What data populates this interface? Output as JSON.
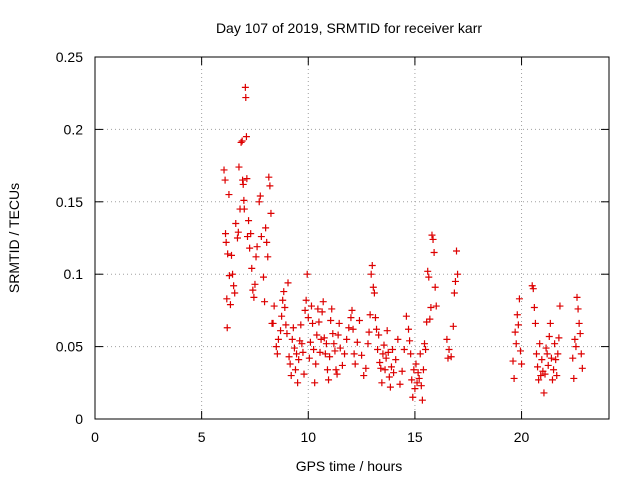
{
  "chart_data": {
    "type": "scatter",
    "title": "Day 107 of 2019, SRMTID for receiver karr",
    "xlabel": "GPS time / hours",
    "ylabel": "SRMTID / TECUs",
    "xlim": [
      0,
      24.1
    ],
    "ylim": [
      0,
      0.25
    ],
    "grid": true,
    "marker": "+",
    "color": "#dd0000",
    "x_ticks": [
      {
        "value": 0,
        "label": "0"
      },
      {
        "value": 5,
        "label": "5"
      },
      {
        "value": 10,
        "label": "10"
      },
      {
        "value": 15,
        "label": "15"
      },
      {
        "value": 20,
        "label": "20"
      }
    ],
    "y_ticks": [
      {
        "value": 0,
        "label": "0"
      },
      {
        "value": 0.05,
        "label": "0.05"
      },
      {
        "value": 0.1,
        "label": "0.1"
      },
      {
        "value": 0.15,
        "label": "0.15"
      },
      {
        "value": 0.2,
        "label": "0.2"
      },
      {
        "value": 0.25,
        "label": "0.25"
      }
    ],
    "series": [
      {
        "name": "SRMTID",
        "points": [
          [
            6.05,
            0.172
          ],
          [
            6.1,
            0.165
          ],
          [
            6.12,
            0.128
          ],
          [
            6.15,
            0.122
          ],
          [
            6.18,
            0.083
          ],
          [
            6.2,
            0.063
          ],
          [
            6.22,
            0.114
          ],
          [
            6.28,
            0.155
          ],
          [
            6.3,
            0.099
          ],
          [
            6.35,
            0.079
          ],
          [
            6.4,
            0.113
          ],
          [
            6.45,
            0.1
          ],
          [
            6.5,
            0.092
          ],
          [
            6.55,
            0.087
          ],
          [
            6.6,
            0.135
          ],
          [
            6.68,
            0.125
          ],
          [
            6.72,
            0.129
          ],
          [
            6.75,
            0.174
          ],
          [
            6.8,
            0.145
          ],
          [
            6.85,
            0.191
          ],
          [
            6.9,
            0.192
          ],
          [
            6.92,
            0.165
          ],
          [
            6.95,
            0.162
          ],
          [
            6.98,
            0.151
          ],
          [
            7.0,
            0.145
          ],
          [
            7.05,
            0.229
          ],
          [
            7.07,
            0.222
          ],
          [
            7.1,
            0.195
          ],
          [
            7.12,
            0.166
          ],
          [
            7.15,
            0.126
          ],
          [
            7.2,
            0.137
          ],
          [
            7.25,
            0.118
          ],
          [
            7.3,
            0.128
          ],
          [
            7.35,
            0.104
          ],
          [
            7.4,
            0.089
          ],
          [
            7.45,
            0.084
          ],
          [
            7.5,
            0.093
          ],
          [
            7.55,
            0.112
          ],
          [
            7.6,
            0.119
          ],
          [
            7.7,
            0.15
          ],
          [
            7.75,
            0.154
          ],
          [
            7.8,
            0.126
          ],
          [
            7.9,
            0.098
          ],
          [
            7.95,
            0.081
          ],
          [
            8.0,
            0.132
          ],
          [
            8.05,
            0.122
          ],
          [
            8.1,
            0.112
          ],
          [
            8.15,
            0.167
          ],
          [
            8.2,
            0.161
          ],
          [
            8.25,
            0.142
          ],
          [
            8.3,
            0.066
          ],
          [
            8.35,
            0.066
          ],
          [
            8.4,
            0.078
          ],
          [
            8.5,
            0.05
          ],
          [
            8.55,
            0.045
          ],
          [
            8.6,
            0.055
          ],
          [
            8.7,
            0.061
          ],
          [
            8.75,
            0.071
          ],
          [
            8.8,
            0.082
          ],
          [
            8.85,
            0.088
          ],
          [
            8.9,
            0.077
          ],
          [
            8.95,
            0.065
          ],
          [
            9.0,
            0.059
          ],
          [
            9.05,
            0.094
          ],
          [
            9.1,
            0.043
          ],
          [
            9.15,
            0.038
          ],
          [
            9.2,
            0.03
          ],
          [
            9.25,
            0.055
          ],
          [
            9.3,
            0.063
          ],
          [
            9.35,
            0.049
          ],
          [
            9.4,
            0.034
          ],
          [
            9.45,
            0.045
          ],
          [
            9.5,
            0.025
          ],
          [
            9.55,
            0.041
          ],
          [
            9.6,
            0.054
          ],
          [
            9.65,
            0.065
          ],
          [
            9.7,
            0.052
          ],
          [
            9.75,
            0.046
          ],
          [
            9.8,
            0.031
          ],
          [
            9.85,
            0.075
          ],
          [
            9.9,
            0.082
          ],
          [
            9.95,
            0.1
          ],
          [
            10.0,
            0.07
          ],
          [
            10.05,
            0.042
          ],
          [
            10.1,
            0.053
          ],
          [
            10.15,
            0.078
          ],
          [
            10.2,
            0.066
          ],
          [
            10.25,
            0.048
          ],
          [
            10.3,
            0.025
          ],
          [
            10.35,
            0.038
          ],
          [
            10.4,
            0.058
          ],
          [
            10.45,
            0.076
          ],
          [
            10.5,
            0.067
          ],
          [
            10.55,
            0.046
          ],
          [
            10.6,
            0.055
          ],
          [
            10.65,
            0.074
          ],
          [
            10.7,
            0.081
          ],
          [
            10.75,
            0.056
          ],
          [
            10.8,
            0.045
          ],
          [
            10.85,
            0.052
          ],
          [
            10.9,
            0.034
          ],
          [
            10.95,
            0.027
          ],
          [
            11.0,
            0.043
          ],
          [
            11.05,
            0.068
          ],
          [
            11.1,
            0.076
          ],
          [
            11.15,
            0.059
          ],
          [
            11.2,
            0.052
          ],
          [
            11.25,
            0.047
          ],
          [
            11.3,
            0.034
          ],
          [
            11.35,
            0.031
          ],
          [
            11.4,
            0.058
          ],
          [
            11.45,
            0.066
          ],
          [
            11.5,
            0.049
          ],
          [
            11.6,
            0.037
          ],
          [
            11.7,
            0.045
          ],
          [
            11.8,
            0.055
          ],
          [
            11.9,
            0.063
          ],
          [
            12.0,
            0.07
          ],
          [
            12.05,
            0.075
          ],
          [
            12.1,
            0.062
          ],
          [
            12.15,
            0.045
          ],
          [
            12.2,
            0.038
          ],
          [
            12.3,
            0.053
          ],
          [
            12.4,
            0.068
          ],
          [
            12.5,
            0.044
          ],
          [
            12.6,
            0.03
          ],
          [
            12.7,
            0.035
          ],
          [
            12.8,
            0.052
          ],
          [
            12.85,
            0.06
          ],
          [
            12.9,
            0.072
          ],
          [
            12.95,
            0.1
          ],
          [
            13.0,
            0.106
          ],
          [
            13.05,
            0.091
          ],
          [
            13.1,
            0.087
          ],
          [
            13.15,
            0.07
          ],
          [
            13.2,
            0.062
          ],
          [
            13.25,
            0.048
          ],
          [
            13.3,
            0.058
          ],
          [
            13.35,
            0.039
          ],
          [
            13.4,
            0.035
          ],
          [
            13.45,
            0.025
          ],
          [
            13.5,
            0.045
          ],
          [
            13.55,
            0.051
          ],
          [
            13.6,
            0.034
          ],
          [
            13.65,
            0.042
          ],
          [
            13.7,
            0.061
          ],
          [
            13.75,
            0.046
          ],
          [
            13.8,
            0.029
          ],
          [
            13.85,
            0.022
          ],
          [
            13.9,
            0.036
          ],
          [
            13.95,
            0.048
          ],
          [
            14.0,
            0.032
          ],
          [
            14.1,
            0.041
          ],
          [
            14.2,
            0.055
          ],
          [
            14.3,
            0.024
          ],
          [
            14.4,
            0.033
          ],
          [
            14.5,
            0.048
          ],
          [
            14.6,
            0.071
          ],
          [
            14.7,
            0.062
          ],
          [
            14.75,
            0.054
          ],
          [
            14.8,
            0.045
          ],
          [
            14.85,
            0.027
          ],
          [
            14.9,
            0.015
          ],
          [
            14.95,
            0.034
          ],
          [
            15.0,
            0.021
          ],
          [
            15.05,
            0.038
          ],
          [
            15.1,
            0.025
          ],
          [
            15.15,
            0.032
          ],
          [
            15.2,
            0.028
          ],
          [
            15.25,
            0.045
          ],
          [
            15.3,
            0.023
          ],
          [
            15.35,
            0.013
          ],
          [
            15.4,
            0.034
          ],
          [
            15.45,
            0.052
          ],
          [
            15.5,
            0.048
          ],
          [
            15.55,
            0.067
          ],
          [
            15.6,
            0.102
          ],
          [
            15.65,
            0.098
          ],
          [
            15.7,
            0.069
          ],
          [
            15.75,
            0.077
          ],
          [
            15.8,
            0.127
          ],
          [
            15.85,
            0.124
          ],
          [
            15.9,
            0.115
          ],
          [
            15.95,
            0.091
          ],
          [
            16.0,
            0.078
          ],
          [
            16.5,
            0.055
          ],
          [
            16.55,
            0.042
          ],
          [
            16.6,
            0.048
          ],
          [
            16.7,
            0.043
          ],
          [
            16.8,
            0.064
          ],
          [
            16.85,
            0.087
          ],
          [
            16.9,
            0.095
          ],
          [
            16.95,
            0.116
          ],
          [
            17.0,
            0.1
          ],
          [
            19.6,
            0.04
          ],
          [
            19.65,
            0.028
          ],
          [
            19.7,
            0.06
          ],
          [
            19.75,
            0.052
          ],
          [
            19.8,
            0.072
          ],
          [
            19.85,
            0.065
          ],
          [
            19.9,
            0.083
          ],
          [
            19.95,
            0.047
          ],
          [
            20.0,
            0.038
          ],
          [
            20.5,
            0.092
          ],
          [
            20.55,
            0.09
          ],
          [
            20.6,
            0.077
          ],
          [
            20.65,
            0.066
          ],
          [
            20.7,
            0.045
          ],
          [
            20.75,
            0.036
          ],
          [
            20.8,
            0.027
          ],
          [
            20.85,
            0.052
          ],
          [
            20.9,
            0.03
          ],
          [
            20.95,
            0.041
          ],
          [
            21.0,
            0.033
          ],
          [
            21.05,
            0.018
          ],
          [
            21.1,
            0.031
          ],
          [
            21.15,
            0.049
          ],
          [
            21.2,
            0.045
          ],
          [
            21.25,
            0.037
          ],
          [
            21.3,
            0.057
          ],
          [
            21.35,
            0.066
          ],
          [
            21.4,
            0.042
          ],
          [
            21.45,
            0.027
          ],
          [
            21.5,
            0.034
          ],
          [
            21.55,
            0.052
          ],
          [
            21.6,
            0.041
          ],
          [
            21.65,
            0.03
          ],
          [
            21.7,
            0.045
          ],
          [
            21.75,
            0.056
          ],
          [
            21.8,
            0.078
          ],
          [
            22.4,
            0.042
          ],
          [
            22.45,
            0.028
          ],
          [
            22.5,
            0.055
          ],
          [
            22.55,
            0.05
          ],
          [
            22.6,
            0.084
          ],
          [
            22.65,
            0.076
          ],
          [
            22.7,
            0.066
          ],
          [
            22.75,
            0.059
          ],
          [
            22.8,
            0.045
          ],
          [
            22.85,
            0.035
          ]
        ]
      }
    ]
  }
}
